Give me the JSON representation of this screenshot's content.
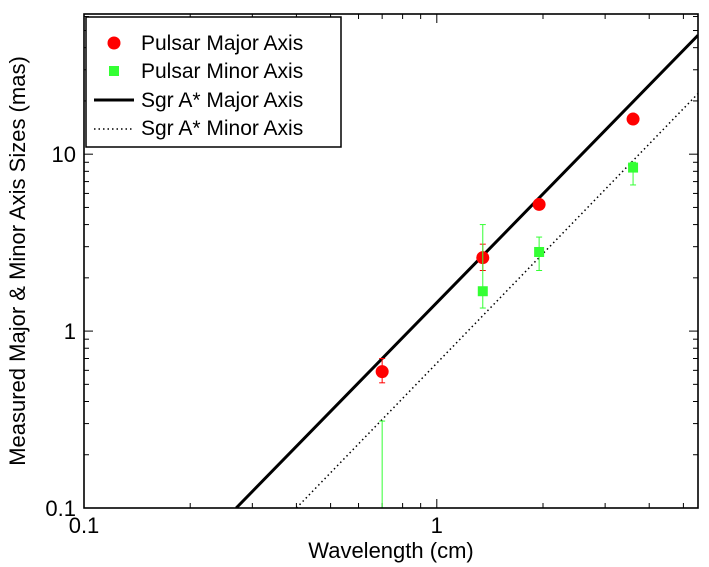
{
  "chart_data": {
    "type": "scatter",
    "xscale": "log",
    "yscale": "log",
    "xlabel": "Wavelength (cm)",
    "ylabel": "Measured Major & Minor Axis Sizes (mas)",
    "xlim": [
      0.1,
      5.5
    ],
    "ylim": [
      0.1,
      62
    ],
    "xticks": [
      {
        "value": 0.1,
        "label": "0.1"
      },
      {
        "value": 1,
        "label": "1"
      }
    ],
    "yticks": [
      {
        "value": 0.1,
        "label": "0.1"
      },
      {
        "value": 1,
        "label": "1"
      },
      {
        "value": 10,
        "label": "10"
      }
    ],
    "series": [
      {
        "name": "Pulsar Major Axis",
        "kind": "points",
        "marker": "circle",
        "color": "#ff0000",
        "errcolor": "#ff0000",
        "points": [
          {
            "x": 0.7,
            "y": 0.59,
            "lo": 0.51,
            "hi": 0.7
          },
          {
            "x": 1.35,
            "y": 2.6,
            "lo": 2.2,
            "hi": 3.1
          },
          {
            "x": 1.95,
            "y": 5.2,
            "lo": 4.9,
            "hi": 5.5
          },
          {
            "x": 3.6,
            "y": 15.8,
            "lo": 15.2,
            "hi": 16.5
          }
        ]
      },
      {
        "name": "Pulsar Minor Axis",
        "kind": "points",
        "marker": "square",
        "color": "#33ff33",
        "errcolor": "#33ff33",
        "points": [
          {
            "x": 0.7,
            "y": null,
            "lo": 0.1,
            "hi": 0.31
          },
          {
            "x": 1.35,
            "y": 1.68,
            "lo": 1.35,
            "hi": 4.0
          },
          {
            "x": 1.95,
            "y": 2.8,
            "lo": 2.2,
            "hi": 3.4
          },
          {
            "x": 3.6,
            "y": 8.4,
            "lo": 6.7,
            "hi": 9.0
          }
        ]
      },
      {
        "name": "Sgr A* Major Axis",
        "kind": "line",
        "style": "solid",
        "color": "#000000",
        "points": [
          {
            "x": 0.27,
            "y": 0.1
          },
          {
            "x": 5.5,
            "y": 47
          }
        ]
      },
      {
        "name": "Sgr A* Minor Axis",
        "kind": "line",
        "style": "dotted",
        "color": "#000000",
        "points": [
          {
            "x": 0.4,
            "y": 0.1
          },
          {
            "x": 5.5,
            "y": 22
          }
        ]
      }
    ],
    "legend": {
      "location": "top-left",
      "entries": [
        "Pulsar Major Axis",
        "Pulsar Minor Axis",
        "Sgr A* Major Axis",
        "Sgr A* Minor Axis"
      ]
    }
  }
}
